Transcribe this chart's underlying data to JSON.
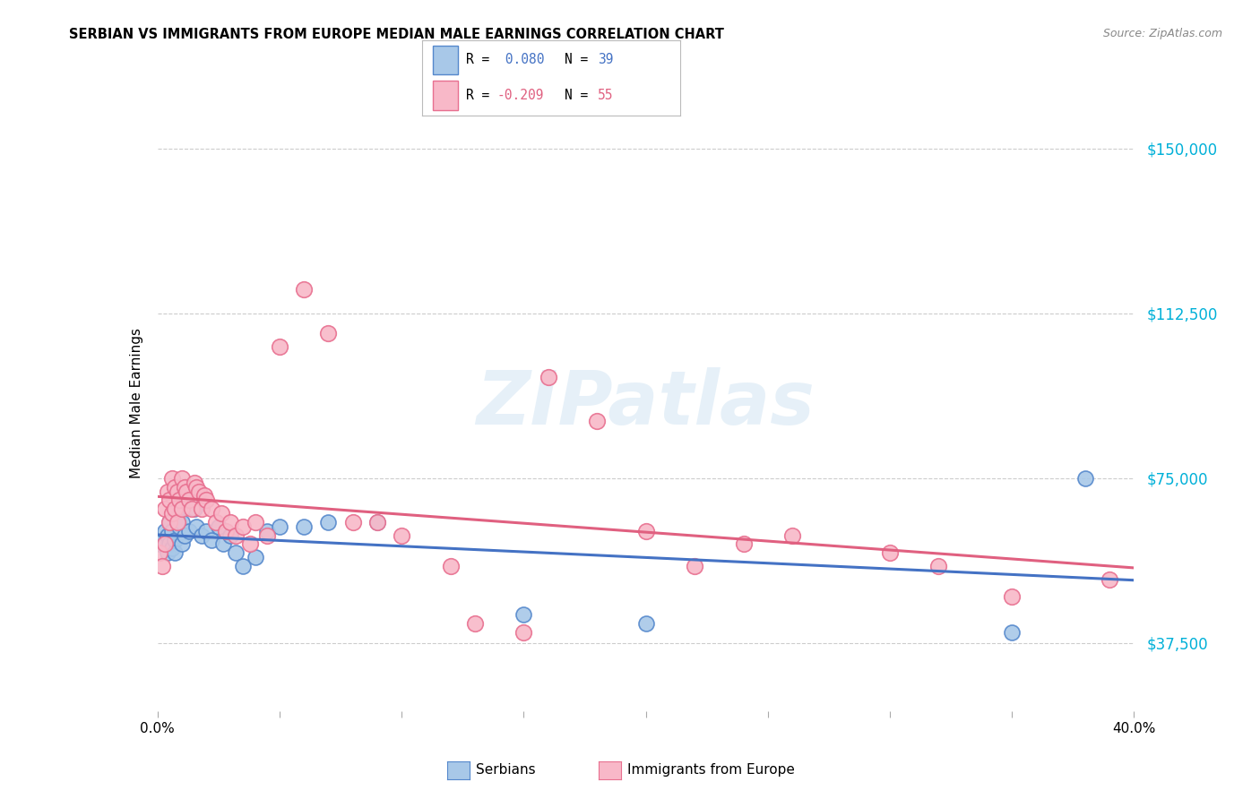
{
  "title": "SERBIAN VS IMMIGRANTS FROM EUROPE MEDIAN MALE EARNINGS CORRELATION CHART",
  "source": "Source: ZipAtlas.com",
  "ylabel": "Median Male Earnings",
  "ytick_vals": [
    37500,
    75000,
    112500,
    150000
  ],
  "ytick_labels": [
    "$37,500",
    "$75,000",
    "$112,500",
    "$150,000"
  ],
  "xlim": [
    0.0,
    0.4
  ],
  "ylim": [
    22000,
    162000
  ],
  "watermark": "ZIPatlas",
  "legend": {
    "serbian_R": 0.08,
    "serbian_N": 39,
    "immigrants_R": -0.209,
    "immigrants_N": 55
  },
  "serbian_fill": "#a8c8e8",
  "serbian_edge": "#5588cc",
  "immigrants_fill": "#f8b8c8",
  "immigrants_edge": "#e87090",
  "serbian_line": "#4472c4",
  "immigrants_line": "#e06080",
  "ytick_color": "#00b0d8",
  "serbian_dots": [
    [
      0.001,
      60000
    ],
    [
      0.002,
      61000
    ],
    [
      0.003,
      63000
    ],
    [
      0.003,
      60000
    ],
    [
      0.004,
      62000
    ],
    [
      0.004,
      58000
    ],
    [
      0.005,
      65000
    ],
    [
      0.005,
      60000
    ],
    [
      0.006,
      63000
    ],
    [
      0.006,
      59000
    ],
    [
      0.007,
      61000
    ],
    [
      0.007,
      58000
    ],
    [
      0.008,
      66000
    ],
    [
      0.009,
      64000
    ],
    [
      0.01,
      65000
    ],
    [
      0.01,
      60000
    ],
    [
      0.011,
      62000
    ],
    [
      0.012,
      70000
    ],
    [
      0.013,
      63000
    ],
    [
      0.015,
      68000
    ],
    [
      0.016,
      64000
    ],
    [
      0.018,
      62000
    ],
    [
      0.02,
      63000
    ],
    [
      0.022,
      61000
    ],
    [
      0.025,
      64000
    ],
    [
      0.027,
      60000
    ],
    [
      0.03,
      62000
    ],
    [
      0.032,
      58000
    ],
    [
      0.035,
      55000
    ],
    [
      0.04,
      57000
    ],
    [
      0.045,
      63000
    ],
    [
      0.05,
      64000
    ],
    [
      0.06,
      64000
    ],
    [
      0.07,
      65000
    ],
    [
      0.09,
      65000
    ],
    [
      0.15,
      44000
    ],
    [
      0.2,
      42000
    ],
    [
      0.35,
      40000
    ],
    [
      0.38,
      75000
    ]
  ],
  "immigrants_dots": [
    [
      0.001,
      58000
    ],
    [
      0.002,
      55000
    ],
    [
      0.003,
      60000
    ],
    [
      0.003,
      68000
    ],
    [
      0.004,
      72000
    ],
    [
      0.005,
      65000
    ],
    [
      0.005,
      70000
    ],
    [
      0.006,
      75000
    ],
    [
      0.006,
      67000
    ],
    [
      0.007,
      73000
    ],
    [
      0.007,
      68000
    ],
    [
      0.008,
      72000
    ],
    [
      0.008,
      65000
    ],
    [
      0.009,
      70000
    ],
    [
      0.01,
      75000
    ],
    [
      0.01,
      68000
    ],
    [
      0.011,
      73000
    ],
    [
      0.012,
      72000
    ],
    [
      0.013,
      70000
    ],
    [
      0.014,
      68000
    ],
    [
      0.015,
      74000
    ],
    [
      0.016,
      73000
    ],
    [
      0.017,
      72000
    ],
    [
      0.018,
      68000
    ],
    [
      0.019,
      71000
    ],
    [
      0.02,
      70000
    ],
    [
      0.022,
      68000
    ],
    [
      0.024,
      65000
    ],
    [
      0.026,
      67000
    ],
    [
      0.028,
      63000
    ],
    [
      0.03,
      65000
    ],
    [
      0.032,
      62000
    ],
    [
      0.035,
      64000
    ],
    [
      0.038,
      60000
    ],
    [
      0.04,
      65000
    ],
    [
      0.045,
      62000
    ],
    [
      0.05,
      105000
    ],
    [
      0.06,
      118000
    ],
    [
      0.07,
      108000
    ],
    [
      0.08,
      65000
    ],
    [
      0.09,
      65000
    ],
    [
      0.1,
      62000
    ],
    [
      0.12,
      55000
    ],
    [
      0.13,
      42000
    ],
    [
      0.15,
      40000
    ],
    [
      0.16,
      98000
    ],
    [
      0.18,
      88000
    ],
    [
      0.2,
      63000
    ],
    [
      0.22,
      55000
    ],
    [
      0.24,
      60000
    ],
    [
      0.26,
      62000
    ],
    [
      0.3,
      58000
    ],
    [
      0.32,
      55000
    ],
    [
      0.35,
      48000
    ],
    [
      0.39,
      52000
    ]
  ]
}
